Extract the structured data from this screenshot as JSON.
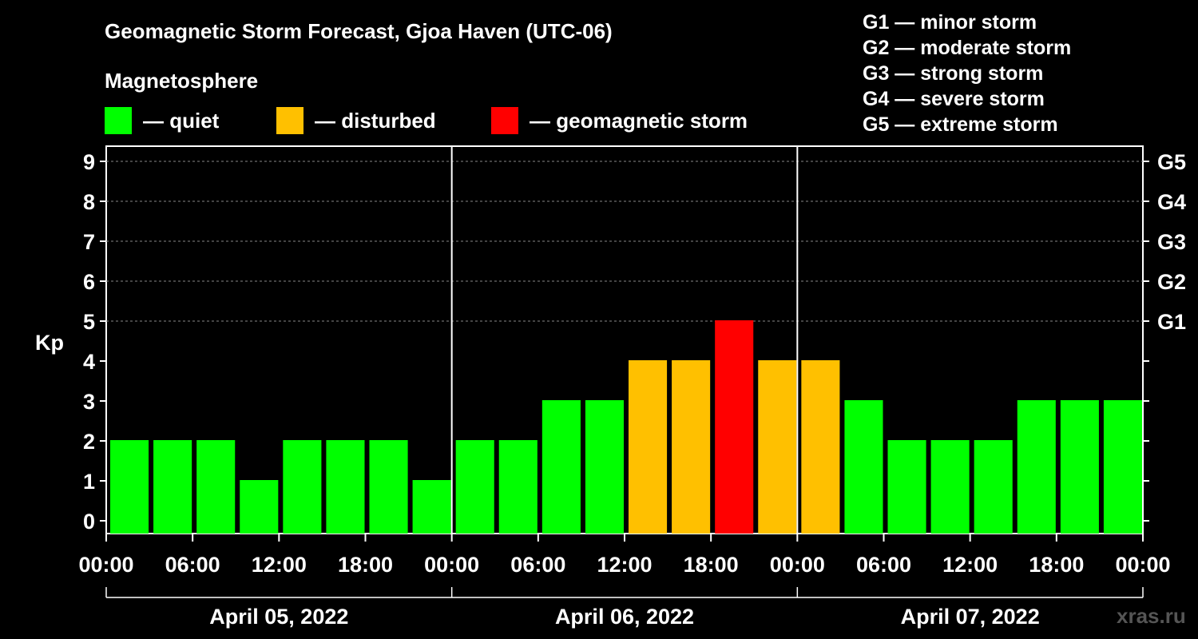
{
  "header": {
    "title": "Geomagnetic Storm Forecast, Gjoa Haven (UTC-06)",
    "subtitle": "Magnetosphere"
  },
  "legend": [
    {
      "label": "— quiet",
      "color": "#00ff00"
    },
    {
      "label": "— disturbed",
      "color": "#ffc000"
    },
    {
      "label": "— geomagnetic storm",
      "color": "#ff0000"
    }
  ],
  "storm_scale": [
    "G1 — minor storm",
    "G2 — moderate storm",
    "G3 — strong storm",
    "G4 — severe storm",
    "G5 — extreme storm"
  ],
  "watermark": "xras.ru",
  "chart_data": {
    "type": "bar",
    "title": "Geomagnetic Storm Forecast, Gjoa Haven (UTC-06)",
    "ylabel": "Kp",
    "ylim": [
      0,
      9
    ],
    "yticks": [
      "0",
      "1",
      "2",
      "3",
      "4",
      "5",
      "6",
      "7",
      "8",
      "9"
    ],
    "right_ticks": [
      {
        "kp": 5,
        "label": "G1"
      },
      {
        "kp": 6,
        "label": "G2"
      },
      {
        "kp": 7,
        "label": "G3"
      },
      {
        "kp": 8,
        "label": "G4"
      },
      {
        "kp": 9,
        "label": "G5"
      }
    ],
    "xtick_labels": [
      "00:00",
      "06:00",
      "12:00",
      "18:00",
      "00:00",
      "06:00",
      "12:00",
      "18:00",
      "00:00",
      "06:00",
      "12:00",
      "18:00",
      "00:00"
    ],
    "days": [
      "April 05, 2022",
      "April 06, 2022",
      "April 07, 2022"
    ],
    "interval_hours": 3,
    "values": [
      2,
      2,
      2,
      1,
      2,
      2,
      2,
      1,
      2,
      2,
      3,
      3,
      4,
      4,
      5,
      4,
      4,
      3,
      2,
      2,
      2,
      3,
      3,
      3
    ],
    "colors": {
      "quiet": "#00ff00",
      "disturbed": "#ffc000",
      "storm": "#ff0000"
    },
    "thresholds": {
      "disturbed": 4,
      "storm": 5
    }
  }
}
